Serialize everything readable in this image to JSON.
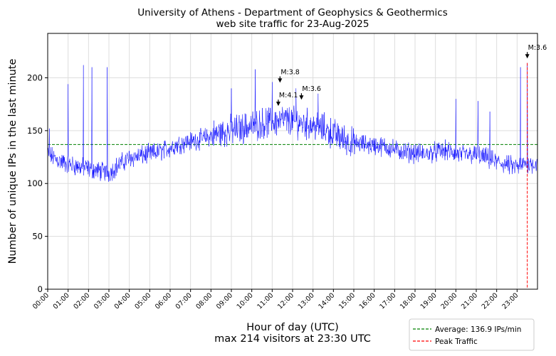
{
  "chart_data": {
    "type": "line",
    "title_line1": "University of Athens - Department of Geophysics & Geothermics",
    "title_line2": "web site traffic for 23-Aug-2025",
    "xlabel": "Hour of day (UTC)",
    "xlabel_sub": "max 214 visitors at 23:30 UTC",
    "ylabel": "Number of unique IPs in the last minute",
    "xlim": [
      0,
      1440
    ],
    "ylim": [
      0,
      242
    ],
    "x_ticks": [
      "00:00",
      "01:00",
      "02:00",
      "03:00",
      "04:00",
      "05:00",
      "06:00",
      "07:00",
      "08:00",
      "09:00",
      "10:00",
      "11:00",
      "12:00",
      "13:00",
      "14:00",
      "15:00",
      "16:00",
      "17:00",
      "18:00",
      "19:00",
      "20:00",
      "21:00",
      "22:00",
      "23:00"
    ],
    "y_ticks": [
      0,
      50,
      100,
      150,
      200
    ],
    "grid": true,
    "average": 136.9,
    "peak": {
      "time": "23:30",
      "minute": 1410,
      "value": 214
    },
    "series_color": "#0000ff",
    "average_color": "#008000",
    "peak_color": "#ff0000",
    "hourly_profile": [
      {
        "minute": 0,
        "value": 128
      },
      {
        "minute": 30,
        "value": 122
      },
      {
        "minute": 60,
        "value": 118
      },
      {
        "minute": 90,
        "value": 116
      },
      {
        "minute": 120,
        "value": 114
      },
      {
        "minute": 150,
        "value": 112
      },
      {
        "minute": 180,
        "value": 110
      },
      {
        "minute": 210,
        "value": 118
      },
      {
        "minute": 240,
        "value": 124
      },
      {
        "minute": 270,
        "value": 126
      },
      {
        "minute": 300,
        "value": 128
      },
      {
        "minute": 330,
        "value": 130
      },
      {
        "minute": 360,
        "value": 134
      },
      {
        "minute": 390,
        "value": 138
      },
      {
        "minute": 420,
        "value": 140
      },
      {
        "minute": 450,
        "value": 142
      },
      {
        "minute": 480,
        "value": 145
      },
      {
        "minute": 510,
        "value": 148
      },
      {
        "minute": 540,
        "value": 150
      },
      {
        "minute": 570,
        "value": 152
      },
      {
        "minute": 600,
        "value": 155
      },
      {
        "minute": 630,
        "value": 157
      },
      {
        "minute": 660,
        "value": 158
      },
      {
        "minute": 690,
        "value": 160
      },
      {
        "minute": 720,
        "value": 159
      },
      {
        "minute": 750,
        "value": 157
      },
      {
        "minute": 780,
        "value": 155
      },
      {
        "minute": 810,
        "value": 152
      },
      {
        "minute": 840,
        "value": 147
      },
      {
        "minute": 870,
        "value": 142
      },
      {
        "minute": 900,
        "value": 138
      },
      {
        "minute": 930,
        "value": 137
      },
      {
        "minute": 960,
        "value": 136
      },
      {
        "minute": 990,
        "value": 135
      },
      {
        "minute": 1020,
        "value": 132
      },
      {
        "minute": 1050,
        "value": 130
      },
      {
        "minute": 1080,
        "value": 129
      },
      {
        "minute": 1110,
        "value": 128
      },
      {
        "minute": 1140,
        "value": 130
      },
      {
        "minute": 1170,
        "value": 131
      },
      {
        "minute": 1200,
        "value": 128
      },
      {
        "minute": 1230,
        "value": 127
      },
      {
        "minute": 1260,
        "value": 127
      },
      {
        "minute": 1290,
        "value": 124
      },
      {
        "minute": 1320,
        "value": 120
      },
      {
        "minute": 1350,
        "value": 118
      },
      {
        "minute": 1380,
        "value": 115
      },
      {
        "minute": 1410,
        "value": 120
      },
      {
        "minute": 1440,
        "value": 118
      }
    ],
    "spikes": [
      {
        "minute": 5,
        "value": 152
      },
      {
        "minute": 60,
        "value": 194
      },
      {
        "minute": 105,
        "value": 212
      },
      {
        "minute": 130,
        "value": 210
      },
      {
        "minute": 175,
        "value": 210
      },
      {
        "minute": 540,
        "value": 190
      },
      {
        "minute": 610,
        "value": 208
      },
      {
        "minute": 660,
        "value": 196
      },
      {
        "minute": 730,
        "value": 190
      },
      {
        "minute": 795,
        "value": 185
      },
      {
        "minute": 1200,
        "value": 180
      },
      {
        "minute": 1265,
        "value": 178
      },
      {
        "minute": 1300,
        "value": 168
      },
      {
        "minute": 1390,
        "value": 210
      },
      {
        "minute": 1410,
        "value": 214
      }
    ],
    "annotations": [
      {
        "label": "M:3.8",
        "minute": 683,
        "value": 196
      },
      {
        "label": "M:4.1",
        "minute": 678,
        "value": 174
      },
      {
        "label": "M:3.6",
        "minute": 746,
        "value": 180
      },
      {
        "label": "M:3.6",
        "minute": 1410,
        "value": 219
      }
    ],
    "legend": {
      "position": "below-right",
      "entries": [
        {
          "label": "Average: 136.9 IPs/min",
          "style": "dashed",
          "color": "#008000"
        },
        {
          "label": "Peak Traffic",
          "style": "dashed",
          "color": "#ff0000"
        }
      ]
    }
  }
}
